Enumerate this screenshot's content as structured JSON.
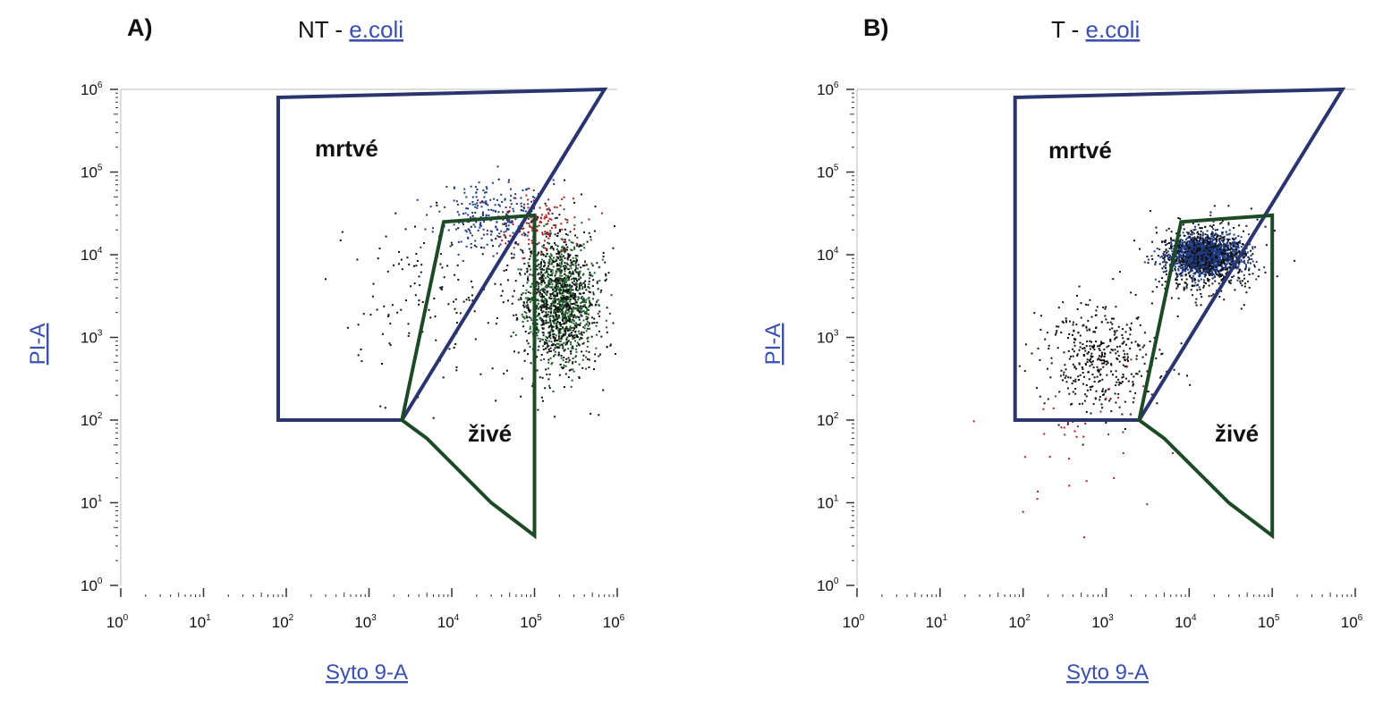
{
  "panels": [
    {
      "letter": "A)",
      "title_prefix": "NT - ",
      "title_link": "e.coli",
      "xlabel": "Syto 9-A",
      "ylabel": "PI-A",
      "gate_dead": "mrtvé",
      "gate_live": "živé"
    },
    {
      "letter": "B)",
      "title_prefix": "T - ",
      "title_link": "e.coli",
      "xlabel": "Syto 9-A",
      "ylabel": "PI-A",
      "gate_dead": "mrtvé",
      "gate_live": "živé"
    }
  ],
  "chart_data": [
    {
      "type": "scatter",
      "title": "NT - e.coli",
      "xlabel": "Syto 9-A",
      "ylabel": "PI-A",
      "x_scale": "log",
      "y_scale": "log",
      "xlim": [
        1,
        1000000
      ],
      "ylim": [
        1,
        1000000
      ],
      "x_ticks": [
        "10^0",
        "10^1",
        "10^2",
        "10^3",
        "10^4",
        "10^5",
        "10^6"
      ],
      "y_ticks": [
        "10^0",
        "10^1",
        "10^2",
        "10^3",
        "10^4",
        "10^5",
        "10^6"
      ],
      "colors": {
        "dead": "#1f3a80",
        "live": "#1e5b2a",
        "debris": "#b01c1c",
        "other": "#111111"
      },
      "gates": [
        {
          "name": "mrtvé",
          "color": "#2a3570",
          "vertices": [
            [
              80,
              800000
            ],
            [
              700000,
              1000000
            ],
            [
              2500,
              100
            ],
            [
              80,
              100
            ]
          ]
        },
        {
          "name": "živé",
          "color": "#1d4a26",
          "vertices": [
            [
              2500,
              100
            ],
            [
              8000,
              25000
            ],
            [
              100000,
              30000
            ],
            [
              100000,
              4
            ],
            [
              30000,
              10
            ],
            [
              5000,
              60
            ]
          ]
        }
      ],
      "populations": [
        {
          "name": "dead",
          "color": "#1f3a80",
          "count": 260,
          "center": [
            30000,
            30000
          ],
          "spread_log": [
            0.32,
            0.22
          ]
        },
        {
          "name": "live",
          "color": "#1e5b2a",
          "count": 900,
          "center": [
            200000,
            3000
          ],
          "spread_log": [
            0.2,
            0.35
          ]
        },
        {
          "name": "live-tail",
          "color": "#111111",
          "count": 700,
          "center": [
            200000,
            2500
          ],
          "spread_log": [
            0.24,
            0.45
          ]
        },
        {
          "name": "debris",
          "color": "#b01c1c",
          "count": 130,
          "center": [
            100000,
            25000
          ],
          "spread_log": [
            0.25,
            0.2
          ]
        },
        {
          "name": "scatter",
          "color": "#111111",
          "count": 160,
          "center": [
            8000,
            3000
          ],
          "spread_log": [
            0.55,
            0.55
          ]
        }
      ]
    },
    {
      "type": "scatter",
      "title": "T - e.coli",
      "xlabel": "Syto 9-A",
      "ylabel": "PI-A",
      "x_scale": "log",
      "y_scale": "log",
      "xlim": [
        1,
        1000000
      ],
      "ylim": [
        1,
        1000000
      ],
      "x_ticks": [
        "10^0",
        "10^1",
        "10^2",
        "10^3",
        "10^4",
        "10^5",
        "10^6"
      ],
      "y_ticks": [
        "10^0",
        "10^1",
        "10^2",
        "10^3",
        "10^4",
        "10^5",
        "10^6"
      ],
      "colors": {
        "dead": "#1f3a80",
        "live": "#1e5b2a",
        "debris": "#b01c1c",
        "other": "#111111"
      },
      "gates": [
        {
          "name": "mrtvé",
          "color": "#2a3570",
          "vertices": [
            [
              80,
              800000
            ],
            [
              700000,
              1000000
            ],
            [
              2500,
              100
            ],
            [
              80,
              100
            ]
          ]
        },
        {
          "name": "živé",
          "color": "#1d4a26",
          "vertices": [
            [
              2500,
              100
            ],
            [
              8000,
              25000
            ],
            [
              100000,
              30000
            ],
            [
              100000,
              4
            ],
            [
              30000,
              10
            ],
            [
              5000,
              60
            ]
          ]
        }
      ],
      "populations": [
        {
          "name": "dead-core",
          "color": "#1f3a80",
          "count": 1800,
          "center": [
            15000,
            10000
          ],
          "spread_log": [
            0.22,
            0.12
          ]
        },
        {
          "name": "dead-halo",
          "color": "#111111",
          "count": 500,
          "center": [
            15000,
            9000
          ],
          "spread_log": [
            0.32,
            0.22
          ]
        },
        {
          "name": "dead-tail",
          "color": "#111111",
          "count": 420,
          "center": [
            800,
            600
          ],
          "spread_log": [
            0.35,
            0.35
          ]
        },
        {
          "name": "debris",
          "color": "#b01c1c",
          "count": 40,
          "center": [
            500,
            60
          ],
          "spread_log": [
            0.45,
            0.5
          ]
        }
      ]
    }
  ]
}
